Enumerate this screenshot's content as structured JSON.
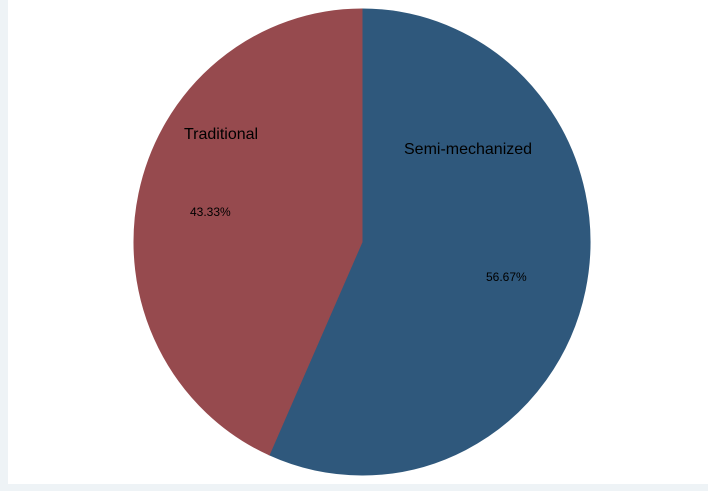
{
  "chart_data": {
    "type": "pie",
    "slices": [
      {
        "label": "Semi-mechanized",
        "value": 56.67,
        "percent_label": "56.67%",
        "color": "#2f587c"
      },
      {
        "label": "Traditional",
        "value": 43.33,
        "percent_label": "43.33%",
        "color": "#964a4e"
      }
    ],
    "start": "12 o'clock",
    "direction": "clockwise",
    "legend": "none"
  }
}
